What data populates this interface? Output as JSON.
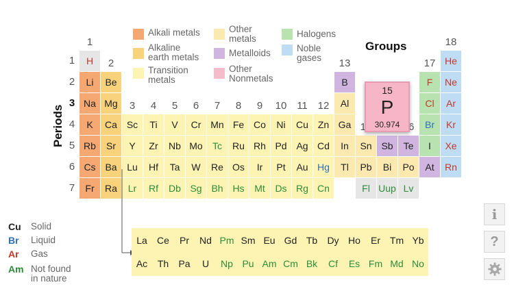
{
  "colors": {
    "alkali": "#f6a873",
    "alkaline_earth": "#f9d27c",
    "transition": "#fdf3b3",
    "other_metals": "#fce9b0",
    "metalloids": "#cfb5e0",
    "other_nonmetals": "#f7bccb",
    "halogens": "#b8e2b0",
    "noble_gases": "#bfdcf5",
    "unknown": "#e6e6e6",
    "solid_text": "#222222",
    "liquid_text": "#2f6fb5",
    "gas_text": "#c0392b",
    "synthetic_text": "#2e8b3a"
  },
  "legend": [
    {
      "label": "Alkali metals",
      "key": "alkali"
    },
    {
      "label": "Alkaline\nearth metals",
      "key": "alkaline_earth"
    },
    {
      "label": "Transition\nmetals",
      "key": "transition"
    },
    {
      "label": "Other\nmetals",
      "key": "other_metals"
    },
    {
      "label": "Metalloids",
      "key": "metalloids"
    },
    {
      "label": "Other\nNonmetals",
      "key": "other_nonmetals"
    },
    {
      "label": "Halogens",
      "key": "halogens"
    },
    {
      "label": "Noble\ngases",
      "key": "noble_gases"
    }
  ],
  "axis": {
    "groups_title": "Groups",
    "periods_title": "Periods",
    "group_numbers": [
      "1",
      "2",
      "3",
      "4",
      "5",
      "6",
      "7",
      "8",
      "9",
      "10",
      "11",
      "12",
      "13",
      "14",
      "15",
      "16",
      "17",
      "18"
    ],
    "period_numbers": [
      "1",
      "2",
      "3",
      "4",
      "5",
      "6",
      "7"
    ],
    "highlight_group": "15",
    "highlight_period": "3"
  },
  "states": [
    {
      "symbol": "Cu",
      "label": "Solid",
      "key": "solid_text"
    },
    {
      "symbol": "Br",
      "label": "Liquid",
      "key": "liquid_text"
    },
    {
      "symbol": "Ar",
      "label": "Gas",
      "key": "gas_text"
    },
    {
      "symbol": "Am",
      "label": "Not found\nin nature",
      "key": "synthetic_text"
    }
  ],
  "selected": {
    "number": "15",
    "symbol": "P",
    "mass": "30.974"
  },
  "sidebar": {
    "info_icon": "i",
    "help_icon": "?",
    "settings_icon": "gear"
  },
  "elements": [
    {
      "s": "H",
      "p": 1,
      "g": 1,
      "c": "unknown",
      "t": "gas_text"
    },
    {
      "s": "He",
      "p": 1,
      "g": 18,
      "c": "noble_gases",
      "t": "gas_text"
    },
    {
      "s": "Li",
      "p": 2,
      "g": 1,
      "c": "alkali",
      "t": "solid_text"
    },
    {
      "s": "Be",
      "p": 2,
      "g": 2,
      "c": "alkaline_earth",
      "t": "solid_text"
    },
    {
      "s": "B",
      "p": 2,
      "g": 13,
      "c": "metalloids",
      "t": "solid_text"
    },
    {
      "s": "F",
      "p": 2,
      "g": 17,
      "c": "halogens",
      "t": "gas_text"
    },
    {
      "s": "Ne",
      "p": 2,
      "g": 18,
      "c": "noble_gases",
      "t": "gas_text"
    },
    {
      "s": "Na",
      "p": 3,
      "g": 1,
      "c": "alkali",
      "t": "solid_text"
    },
    {
      "s": "Mg",
      "p": 3,
      "g": 2,
      "c": "alkaline_earth",
      "t": "solid_text"
    },
    {
      "s": "Al",
      "p": 3,
      "g": 13,
      "c": "other_metals",
      "t": "solid_text"
    },
    {
      "s": "Cl",
      "p": 3,
      "g": 17,
      "c": "halogens",
      "t": "gas_text"
    },
    {
      "s": "Ar",
      "p": 3,
      "g": 18,
      "c": "noble_gases",
      "t": "gas_text"
    },
    {
      "s": "K",
      "p": 4,
      "g": 1,
      "c": "alkali",
      "t": "solid_text"
    },
    {
      "s": "Ca",
      "p": 4,
      "g": 2,
      "c": "alkaline_earth",
      "t": "solid_text"
    },
    {
      "s": "Sc",
      "p": 4,
      "g": 3,
      "c": "transition",
      "t": "solid_text"
    },
    {
      "s": "Ti",
      "p": 4,
      "g": 4,
      "c": "transition",
      "t": "solid_text"
    },
    {
      "s": "V",
      "p": 4,
      "g": 5,
      "c": "transition",
      "t": "solid_text"
    },
    {
      "s": "Cr",
      "p": 4,
      "g": 6,
      "c": "transition",
      "t": "solid_text"
    },
    {
      "s": "Mn",
      "p": 4,
      "g": 7,
      "c": "transition",
      "t": "solid_text"
    },
    {
      "s": "Fe",
      "p": 4,
      "g": 8,
      "c": "transition",
      "t": "solid_text"
    },
    {
      "s": "Co",
      "p": 4,
      "g": 9,
      "c": "transition",
      "t": "solid_text"
    },
    {
      "s": "Ni",
      "p": 4,
      "g": 10,
      "c": "transition",
      "t": "solid_text"
    },
    {
      "s": "Cu",
      "p": 4,
      "g": 11,
      "c": "transition",
      "t": "solid_text"
    },
    {
      "s": "Zn",
      "p": 4,
      "g": 12,
      "c": "transition",
      "t": "solid_text"
    },
    {
      "s": "Ga",
      "p": 4,
      "g": 13,
      "c": "other_metals",
      "t": "solid_text"
    },
    {
      "s": "Br",
      "p": 4,
      "g": 17,
      "c": "halogens",
      "t": "liquid_text"
    },
    {
      "s": "Kr",
      "p": 4,
      "g": 18,
      "c": "noble_gases",
      "t": "gas_text"
    },
    {
      "s": "Rb",
      "p": 5,
      "g": 1,
      "c": "alkali",
      "t": "solid_text"
    },
    {
      "s": "Sr",
      "p": 5,
      "g": 2,
      "c": "alkaline_earth",
      "t": "solid_text"
    },
    {
      "s": "Y",
      "p": 5,
      "g": 3,
      "c": "transition",
      "t": "solid_text"
    },
    {
      "s": "Zr",
      "p": 5,
      "g": 4,
      "c": "transition",
      "t": "solid_text"
    },
    {
      "s": "Nb",
      "p": 5,
      "g": 5,
      "c": "transition",
      "t": "solid_text"
    },
    {
      "s": "Mo",
      "p": 5,
      "g": 6,
      "c": "transition",
      "t": "solid_text"
    },
    {
      "s": "Tc",
      "p": 5,
      "g": 7,
      "c": "transition",
      "t": "synthetic_text"
    },
    {
      "s": "Ru",
      "p": 5,
      "g": 8,
      "c": "transition",
      "t": "solid_text"
    },
    {
      "s": "Rh",
      "p": 5,
      "g": 9,
      "c": "transition",
      "t": "solid_text"
    },
    {
      "s": "Pd",
      "p": 5,
      "g": 10,
      "c": "transition",
      "t": "solid_text"
    },
    {
      "s": "Ag",
      "p": 5,
      "g": 11,
      "c": "transition",
      "t": "solid_text"
    },
    {
      "s": "Cd",
      "p": 5,
      "g": 12,
      "c": "transition",
      "t": "solid_text"
    },
    {
      "s": "In",
      "p": 5,
      "g": 13,
      "c": "other_metals",
      "t": "solid_text"
    },
    {
      "s": "Sn",
      "p": 5,
      "g": 14,
      "c": "other_metals",
      "t": "solid_text"
    },
    {
      "s": "Sb",
      "p": 5,
      "g": 15,
      "c": "metalloids",
      "t": "solid_text"
    },
    {
      "s": "Te",
      "p": 5,
      "g": 16,
      "c": "metalloids",
      "t": "solid_text"
    },
    {
      "s": "I",
      "p": 5,
      "g": 17,
      "c": "halogens",
      "t": "solid_text"
    },
    {
      "s": "Xe",
      "p": 5,
      "g": 18,
      "c": "noble_gases",
      "t": "gas_text"
    },
    {
      "s": "Cs",
      "p": 6,
      "g": 1,
      "c": "alkali",
      "t": "solid_text"
    },
    {
      "s": "Ba",
      "p": 6,
      "g": 2,
      "c": "alkaline_earth",
      "t": "solid_text"
    },
    {
      "s": "Lu",
      "p": 6,
      "g": 3,
      "c": "transition",
      "t": "solid_text"
    },
    {
      "s": "Hf",
      "p": 6,
      "g": 4,
      "c": "transition",
      "t": "solid_text"
    },
    {
      "s": "Ta",
      "p": 6,
      "g": 5,
      "c": "transition",
      "t": "solid_text"
    },
    {
      "s": "W",
      "p": 6,
      "g": 6,
      "c": "transition",
      "t": "solid_text"
    },
    {
      "s": "Re",
      "p": 6,
      "g": 7,
      "c": "transition",
      "t": "solid_text"
    },
    {
      "s": "Os",
      "p": 6,
      "g": 8,
      "c": "transition",
      "t": "solid_text"
    },
    {
      "s": "Ir",
      "p": 6,
      "g": 9,
      "c": "transition",
      "t": "solid_text"
    },
    {
      "s": "Pt",
      "p": 6,
      "g": 10,
      "c": "transition",
      "t": "solid_text"
    },
    {
      "s": "Au",
      "p": 6,
      "g": 11,
      "c": "transition",
      "t": "solid_text"
    },
    {
      "s": "Hg",
      "p": 6,
      "g": 12,
      "c": "transition",
      "t": "liquid_text"
    },
    {
      "s": "Tl",
      "p": 6,
      "g": 13,
      "c": "other_metals",
      "t": "solid_text"
    },
    {
      "s": "Pb",
      "p": 6,
      "g": 14,
      "c": "other_metals",
      "t": "solid_text"
    },
    {
      "s": "Bi",
      "p": 6,
      "g": 15,
      "c": "other_metals",
      "t": "solid_text"
    },
    {
      "s": "Po",
      "p": 6,
      "g": 16,
      "c": "other_metals",
      "t": "solid_text"
    },
    {
      "s": "At",
      "p": 6,
      "g": 17,
      "c": "metalloids",
      "t": "solid_text"
    },
    {
      "s": "Rn",
      "p": 6,
      "g": 18,
      "c": "noble_gases",
      "t": "gas_text"
    },
    {
      "s": "Fr",
      "p": 7,
      "g": 1,
      "c": "alkali",
      "t": "solid_text"
    },
    {
      "s": "Ra",
      "p": 7,
      "g": 2,
      "c": "alkaline_earth",
      "t": "solid_text"
    },
    {
      "s": "Lr",
      "p": 7,
      "g": 3,
      "c": "transition",
      "t": "synthetic_text"
    },
    {
      "s": "Rf",
      "p": 7,
      "g": 4,
      "c": "transition",
      "t": "synthetic_text"
    },
    {
      "s": "Db",
      "p": 7,
      "g": 5,
      "c": "transition",
      "t": "synthetic_text"
    },
    {
      "s": "Sg",
      "p": 7,
      "g": 6,
      "c": "transition",
      "t": "synthetic_text"
    },
    {
      "s": "Bh",
      "p": 7,
      "g": 7,
      "c": "transition",
      "t": "synthetic_text"
    },
    {
      "s": "Hs",
      "p": 7,
      "g": 8,
      "c": "transition",
      "t": "synthetic_text"
    },
    {
      "s": "Mt",
      "p": 7,
      "g": 9,
      "c": "transition",
      "t": "synthetic_text"
    },
    {
      "s": "Ds",
      "p": 7,
      "g": 10,
      "c": "transition",
      "t": "synthetic_text"
    },
    {
      "s": "Rg",
      "p": 7,
      "g": 11,
      "c": "transition",
      "t": "synthetic_text"
    },
    {
      "s": "Cn",
      "p": 7,
      "g": 12,
      "c": "transition",
      "t": "synthetic_text"
    },
    {
      "s": "Fl",
      "p": 7,
      "g": 14,
      "c": "unknown",
      "t": "synthetic_text"
    },
    {
      "s": "Uup",
      "p": 7,
      "g": 15,
      "c": "unknown",
      "t": "synthetic_text"
    },
    {
      "s": "Lv",
      "p": 7,
      "g": 16,
      "c": "unknown",
      "t": "synthetic_text"
    }
  ],
  "lanthanides": [
    "La",
    "Ce",
    "Pr",
    "Nd",
    "Pm",
    "Sm",
    "Eu",
    "Gd",
    "Tb",
    "Dy",
    "Ho",
    "Er",
    "Tm",
    "Yb"
  ],
  "actinides": [
    "Ac",
    "Th",
    "Pa",
    "U",
    "Np",
    "Pu",
    "Am",
    "Cm",
    "Bk",
    "Cf",
    "Es",
    "Fm",
    "Md",
    "No"
  ],
  "synthetic_f_block": [
    "Pm",
    "Np",
    "Pu",
    "Am",
    "Cm",
    "Bk",
    "Cf",
    "Es",
    "Fm",
    "Md",
    "No"
  ]
}
